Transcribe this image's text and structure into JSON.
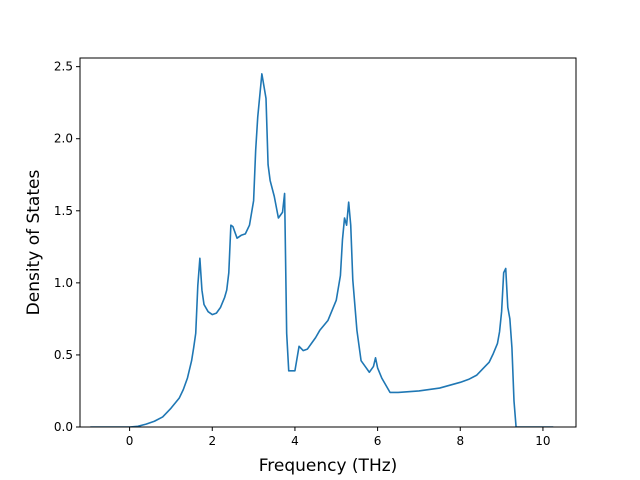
{
  "chart_data": {
    "type": "line",
    "xlabel": "Frequency (THz)",
    "ylabel": "Density of States",
    "xlim": [
      -1.2,
      10.8
    ],
    "ylim": [
      0,
      2.56
    ],
    "xticks": [
      0,
      2,
      4,
      6,
      8,
      10
    ],
    "yticks": [
      0.0,
      0.5,
      1.0,
      1.5,
      2.0,
      2.5
    ],
    "xtick_labels": [
      "0",
      "2",
      "4",
      "6",
      "8",
      "10"
    ],
    "ytick_labels": [
      "0.0",
      "0.5",
      "1.0",
      "1.5",
      "2.0",
      "2.5"
    ],
    "grid": false,
    "series": [
      {
        "color": "#1f77b4",
        "x": [
          -0.95,
          -0.5,
          0.0,
          0.2,
          0.4,
          0.6,
          0.8,
          1.0,
          1.2,
          1.3,
          1.4,
          1.5,
          1.55,
          1.6,
          1.65,
          1.7,
          1.75,
          1.8,
          1.9,
          2.0,
          2.1,
          2.2,
          2.3,
          2.35,
          2.4,
          2.45,
          2.5,
          2.6,
          2.7,
          2.8,
          2.9,
          3.0,
          3.05,
          3.1,
          3.2,
          3.3,
          3.35,
          3.4,
          3.5,
          3.6,
          3.7,
          3.75,
          3.8,
          3.85,
          3.9,
          4.0,
          4.1,
          4.2,
          4.3,
          4.4,
          4.5,
          4.6,
          4.8,
          5.0,
          5.1,
          5.15,
          5.2,
          5.25,
          5.3,
          5.35,
          5.4,
          5.5,
          5.6,
          5.7,
          5.8,
          5.9,
          5.95,
          6.0,
          6.1,
          6.3,
          6.5,
          7.0,
          7.5,
          8.0,
          8.2,
          8.4,
          8.6,
          8.7,
          8.8,
          8.9,
          8.95,
          9.0,
          9.05,
          9.1,
          9.15,
          9.2,
          9.25,
          9.3,
          9.35,
          9.5,
          10.25
        ],
        "y": [
          0.0,
          0.0,
          0.0,
          0.005,
          0.02,
          0.04,
          0.07,
          0.13,
          0.2,
          0.26,
          0.34,
          0.46,
          0.55,
          0.65,
          0.98,
          1.17,
          0.95,
          0.85,
          0.8,
          0.78,
          0.79,
          0.83,
          0.9,
          0.95,
          1.07,
          1.4,
          1.39,
          1.31,
          1.33,
          1.34,
          1.4,
          1.57,
          1.92,
          2.15,
          2.45,
          2.28,
          1.82,
          1.71,
          1.6,
          1.45,
          1.49,
          1.62,
          0.65,
          0.39,
          0.39,
          0.39,
          0.56,
          0.53,
          0.54,
          0.58,
          0.62,
          0.67,
          0.74,
          0.88,
          1.05,
          1.3,
          1.45,
          1.4,
          1.56,
          1.4,
          1.02,
          0.67,
          0.46,
          0.42,
          0.38,
          0.42,
          0.48,
          0.41,
          0.34,
          0.24,
          0.24,
          0.25,
          0.27,
          0.31,
          0.33,
          0.36,
          0.42,
          0.45,
          0.51,
          0.58,
          0.66,
          0.8,
          1.07,
          1.1,
          0.83,
          0.75,
          0.55,
          0.18,
          0.0,
          0.0,
          0.0
        ]
      }
    ]
  }
}
